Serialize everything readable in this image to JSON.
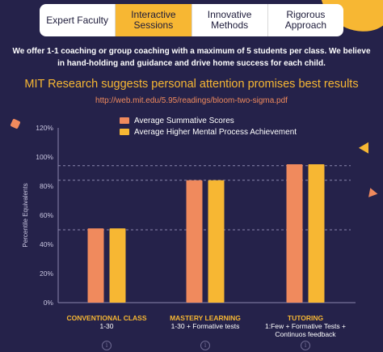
{
  "tabs": [
    {
      "label": "Expert Faculty",
      "active": false
    },
    {
      "label": "Interactive Sessions",
      "active": true
    },
    {
      "label": "Innovative Methods",
      "active": false
    },
    {
      "label": "Rigorous Approach",
      "active": false
    }
  ],
  "intro_text": "We offer 1-1 coaching or group coaching with a maximum of 5 students per class. We believe in hand-holding and guidance and drive home success for each child.",
  "heading": "MIT Research suggests personal attention promises best results",
  "reference_link": "http://web.mit.edu/5.95/readings/bloom-two-sigma.pdf",
  "icons": {
    "info": "info-icon"
  },
  "colors": {
    "background": "#25224a",
    "accent_yellow": "#f7b733",
    "accent_salmon": "#f08a5d",
    "series1": "#f08a5d",
    "series2": "#f7b733"
  },
  "chart_data": {
    "type": "bar",
    "ylabel": "Percentile Equivalents",
    "xlabel": "",
    "ylim": [
      0,
      120
    ],
    "yticks": [
      0,
      20,
      40,
      60,
      80,
      100,
      120
    ],
    "ytick_labels": [
      "0%",
      "20%",
      "40%",
      "60%",
      "80%",
      "100%",
      "120%"
    ],
    "reference_lines": [
      50,
      84,
      94
    ],
    "categories": [
      {
        "name": "CONVENTIONAL CLASS",
        "detail": "1-30"
      },
      {
        "name": "MASTERY LEARNING",
        "detail": "1-30 + Formative tests"
      },
      {
        "name": "TUTORING",
        "detail": "1:Few + Formative Tests + Continuos feedback"
      }
    ],
    "series": [
      {
        "name": "Average Summative Scores",
        "color": "#f08a5d",
        "values": [
          51,
          84,
          95
        ]
      },
      {
        "name": "Average Higher Mental Process Achievement",
        "color": "#f7b733",
        "values": [
          51,
          84,
          95
        ]
      }
    ],
    "legend_position": "top-center",
    "grid": false
  }
}
